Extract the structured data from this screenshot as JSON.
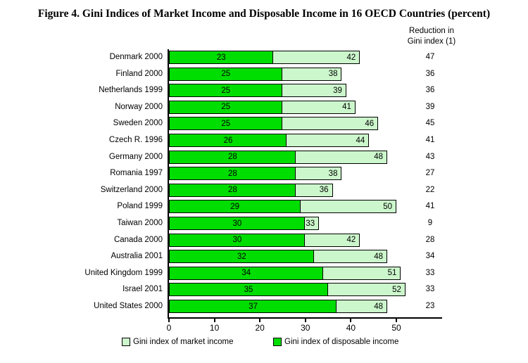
{
  "title": "Figure 4. Gini Indices of Market Income and Disposable Income in 16 OECD Countries (percent)",
  "reduction_header": {
    "line1": "Reduction in",
    "line2": "Gini index (1)"
  },
  "chart_data": {
    "type": "bar",
    "orientation": "horizontal",
    "categories": [
      "Denmark 2000",
      "Finland 2000",
      "Netherlands 1999",
      "Norway 2000",
      "Sweden 2000",
      "Czech R. 1996",
      "Germany 2000",
      "Romania 1997",
      "Switzerland 2000",
      "Poland 1999",
      "Taiwan 2000",
      "Canada 2000",
      "Australia 2001",
      "United Kingdom 1999",
      "Israel 2001",
      "United States 2000"
    ],
    "series": [
      {
        "name": "Gini index of disposable income",
        "color": "#00dd00",
        "values": [
          23,
          25,
          25,
          25,
          25,
          26,
          28,
          28,
          28,
          29,
          30,
          30,
          32,
          34,
          35,
          37
        ]
      },
      {
        "name": "Gini index of market income",
        "color": "#ccf7cc",
        "values": [
          42,
          38,
          39,
          41,
          46,
          44,
          48,
          38,
          36,
          50,
          33,
          42,
          48,
          51,
          52,
          48
        ]
      }
    ],
    "reduction_values": [
      47,
      36,
      36,
      39,
      45,
      41,
      43,
      27,
      22,
      41,
      9,
      28,
      34,
      33,
      33,
      23
    ],
    "x_ticks": [
      0,
      10,
      20,
      30,
      40,
      50
    ],
    "xlim": [
      0,
      60
    ],
    "grid": false,
    "legend_position": "bottom",
    "legend": [
      {
        "label": "Gini index of market income",
        "color": "#ccf7cc"
      },
      {
        "label": "Gini index of disposable income",
        "color": "#00dd00"
      }
    ]
  }
}
